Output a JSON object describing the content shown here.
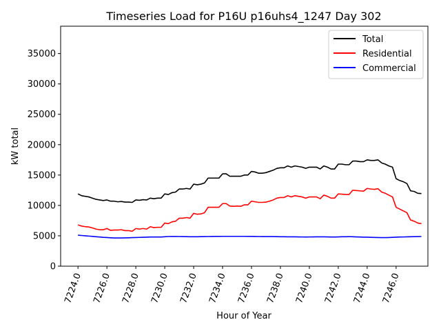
{
  "chart_data": {
    "type": "line",
    "title": "Timeseries Load for P16U p16uhs4_1247  Day 302",
    "xlabel": "Hour of Year",
    "ylabel": "kW total",
    "xlim": [
      7222.8,
      7248.2
    ],
    "ylim": [
      0,
      39500
    ],
    "xticks": [
      7224,
      7226,
      7228,
      7230,
      7232,
      7234,
      7236,
      7238,
      7240,
      7242,
      7244,
      7246
    ],
    "xtick_labels": [
      "7224.0",
      "7226.0",
      "7228.0",
      "7230.0",
      "7232.0",
      "7234.0",
      "7236.0",
      "7238.0",
      "7240.0",
      "7242.0",
      "7244.0",
      "7246.0"
    ],
    "yticks": [
      0,
      5000,
      10000,
      15000,
      20000,
      25000,
      30000,
      35000
    ],
    "ytick_labels": [
      "0",
      "5000",
      "10000",
      "15000",
      "20000",
      "25000",
      "30000",
      "35000"
    ],
    "legend_position": "top-right",
    "x_start": 7224,
    "x_step": 0.25,
    "series": [
      {
        "name": "Total",
        "color": "#000000",
        "values": [
          11900,
          11600,
          11500,
          11400,
          11200,
          11000,
          10900,
          10800,
          10900,
          10700,
          10700,
          10600,
          10650,
          10550,
          10550,
          10500,
          10900,
          10850,
          10950,
          10900,
          11200,
          11100,
          11200,
          11200,
          11900,
          11800,
          12100,
          12200,
          12700,
          12700,
          12800,
          12700,
          13500,
          13400,
          13500,
          13700,
          14500,
          14500,
          14500,
          14500,
          15200,
          15200,
          14800,
          14800,
          14800,
          14800,
          15000,
          15000,
          15600,
          15500,
          15300,
          15300,
          15400,
          15600,
          15800,
          16100,
          16200,
          16200,
          16500,
          16300,
          16500,
          16400,
          16300,
          16100,
          16300,
          16300,
          16300,
          16000,
          16500,
          16300,
          16000,
          16000,
          16800,
          16800,
          16700,
          16700,
          17300,
          17300,
          17200,
          17200,
          17500,
          17400,
          17400,
          17500,
          17000,
          16800,
          16500,
          16300,
          14400,
          14100,
          13900,
          13600,
          12400,
          12300,
          12000,
          11950
        ]
      },
      {
        "name": "Residential",
        "color": "#ff0000",
        "values": [
          6800,
          6600,
          6500,
          6450,
          6300,
          6100,
          6000,
          6000,
          6200,
          5900,
          5950,
          5950,
          6000,
          5850,
          5850,
          5750,
          6200,
          6100,
          6200,
          6100,
          6500,
          6350,
          6400,
          6400,
          7100,
          7000,
          7300,
          7400,
          7900,
          7900,
          8000,
          7900,
          8700,
          8550,
          8600,
          8800,
          9700,
          9700,
          9700,
          9700,
          10300,
          10300,
          9900,
          9850,
          9900,
          9850,
          10100,
          10100,
          10700,
          10600,
          10500,
          10500,
          10550,
          10700,
          10900,
          11200,
          11300,
          11300,
          11600,
          11400,
          11600,
          11500,
          11400,
          11200,
          11400,
          11400,
          11400,
          11100,
          11700,
          11500,
          11200,
          11200,
          11900,
          11850,
          11800,
          11800,
          12500,
          12450,
          12400,
          12350,
          12800,
          12700,
          12650,
          12750,
          12200,
          12000,
          11700,
          11400,
          9700,
          9400,
          9100,
          8800,
          7600,
          7400,
          7100,
          7000
        ]
      },
      {
        "name": "Commercial",
        "color": "#0000ff",
        "values": [
          5100,
          5050,
          5000,
          4950,
          4900,
          4850,
          4800,
          4750,
          4720,
          4680,
          4650,
          4650,
          4650,
          4660,
          4680,
          4700,
          4720,
          4740,
          4760,
          4780,
          4800,
          4800,
          4800,
          4800,
          4850,
          4880,
          4890,
          4890,
          4880,
          4870,
          4860,
          4850,
          4850,
          4850,
          4860,
          4870,
          4880,
          4890,
          4900,
          4900,
          4910,
          4910,
          4910,
          4910,
          4910,
          4910,
          4910,
          4900,
          4900,
          4890,
          4880,
          4870,
          4870,
          4870,
          4870,
          4860,
          4850,
          4840,
          4830,
          4830,
          4830,
          4820,
          4810,
          4800,
          4810,
          4820,
          4830,
          4830,
          4830,
          4820,
          4800,
          4800,
          4820,
          4840,
          4850,
          4860,
          4840,
          4820,
          4800,
          4780,
          4770,
          4750,
          4730,
          4720,
          4700,
          4700,
          4720,
          4750,
          4780,
          4800,
          4810,
          4830,
          4850,
          4860,
          4870,
          4880
        ]
      }
    ]
  }
}
